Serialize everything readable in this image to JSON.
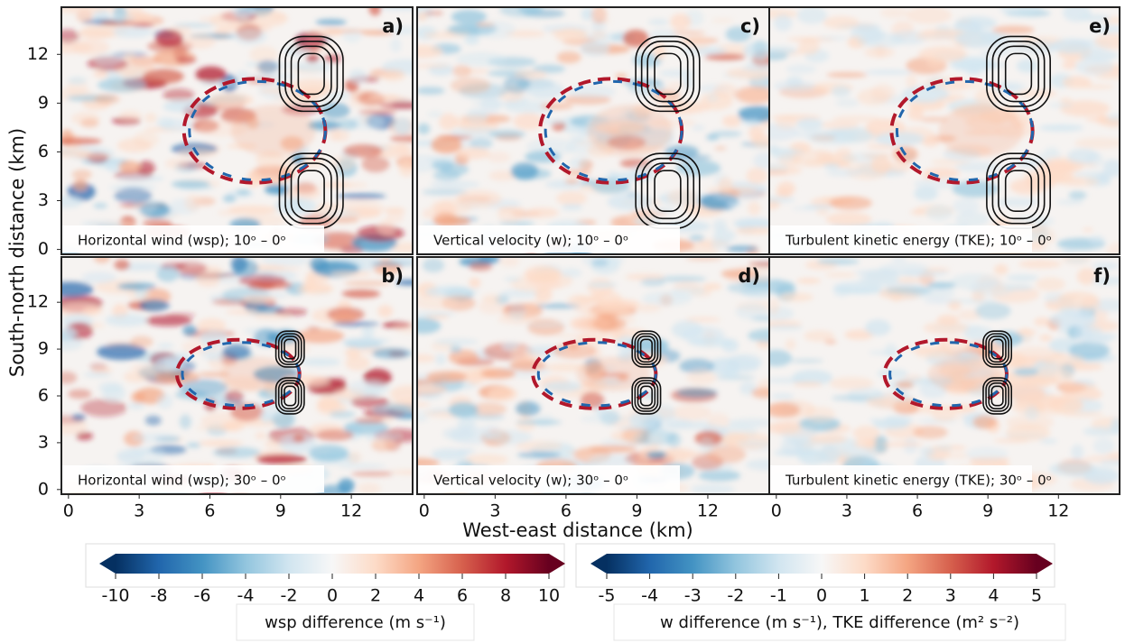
{
  "chart_data": [
    {
      "type": "heatmap",
      "label": "a)",
      "caption": "Horizontal wind (wsp); 10ᵒ – 0ᵒ",
      "ylabel": "South-north distance (km)",
      "xlim": [
        -0.3,
        14.6
      ],
      "ylim": [
        -0.3,
        14.9
      ],
      "yticks": [
        0,
        3,
        6,
        9,
        12
      ]
    },
    {
      "type": "heatmap",
      "label": "b)",
      "caption": "Horizontal wind (wsp); 30ᵒ – 0ᵒ",
      "xlim": [
        -0.3,
        14.6
      ],
      "ylim": [
        -0.3,
        14.9
      ],
      "xticks": [
        0,
        3,
        6,
        9,
        12
      ],
      "yticks": [
        0,
        3,
        6,
        9,
        12
      ]
    },
    {
      "type": "heatmap",
      "label": "c)",
      "caption": "Vertical velocity (w); 10ᵒ – 0ᵒ",
      "xlim": [
        -0.3,
        14.6
      ],
      "ylim": [
        -0.3,
        14.9
      ]
    },
    {
      "type": "heatmap",
      "label": "d)",
      "caption": "Vertical velocity (w); 30ᵒ – 0ᵒ",
      "xlabel": "West-east distance (km)",
      "xlim": [
        -0.3,
        14.6
      ],
      "ylim": [
        -0.3,
        14.9
      ],
      "xticks": [
        0,
        3,
        6,
        9,
        12
      ]
    },
    {
      "type": "heatmap",
      "label": "e)",
      "caption": "Turbulent kinetic energy (TKE); 10ᵒ – 0ᵒ",
      "xlim": [
        -0.3,
        14.6
      ],
      "ylim": [
        -0.3,
        14.9
      ]
    },
    {
      "type": "heatmap",
      "label": "f)",
      "caption": "Turbulent kinetic energy (TKE); 30ᵒ – 0ᵒ",
      "xlim": [
        -0.3,
        14.6
      ],
      "ylim": [
        -0.3,
        14.9
      ],
      "xticks": [
        0,
        3,
        6,
        9,
        12
      ]
    },
    {
      "type": "colorbar",
      "label": "wsp difference (m s⁻¹)",
      "xlim": [
        -10,
        10
      ],
      "xticks": [
        -10,
        -8,
        -6,
        -4,
        -2,
        0,
        2,
        4,
        6,
        8,
        10
      ],
      "colors": [
        "#053061",
        "#2166ac",
        "#4393c3",
        "#92c5de",
        "#d1e5f0",
        "#f7f7f7",
        "#fddbc7",
        "#f4a582",
        "#d6604d",
        "#b2182b",
        "#67001f"
      ]
    },
    {
      "type": "colorbar",
      "label": "w difference (m s⁻¹), TKE difference (m² s⁻²)",
      "xlim": [
        -5,
        5
      ],
      "xticks": [
        -5,
        -4,
        -3,
        -2,
        -1,
        0,
        1,
        2,
        3,
        4,
        5
      ],
      "colors": [
        "#053061",
        "#2166ac",
        "#4393c3",
        "#92c5de",
        "#d1e5f0",
        "#f7f7f7",
        "#fddbc7",
        "#f4a582",
        "#d6604d",
        "#b2182b",
        "#67001f"
      ]
    }
  ]
}
